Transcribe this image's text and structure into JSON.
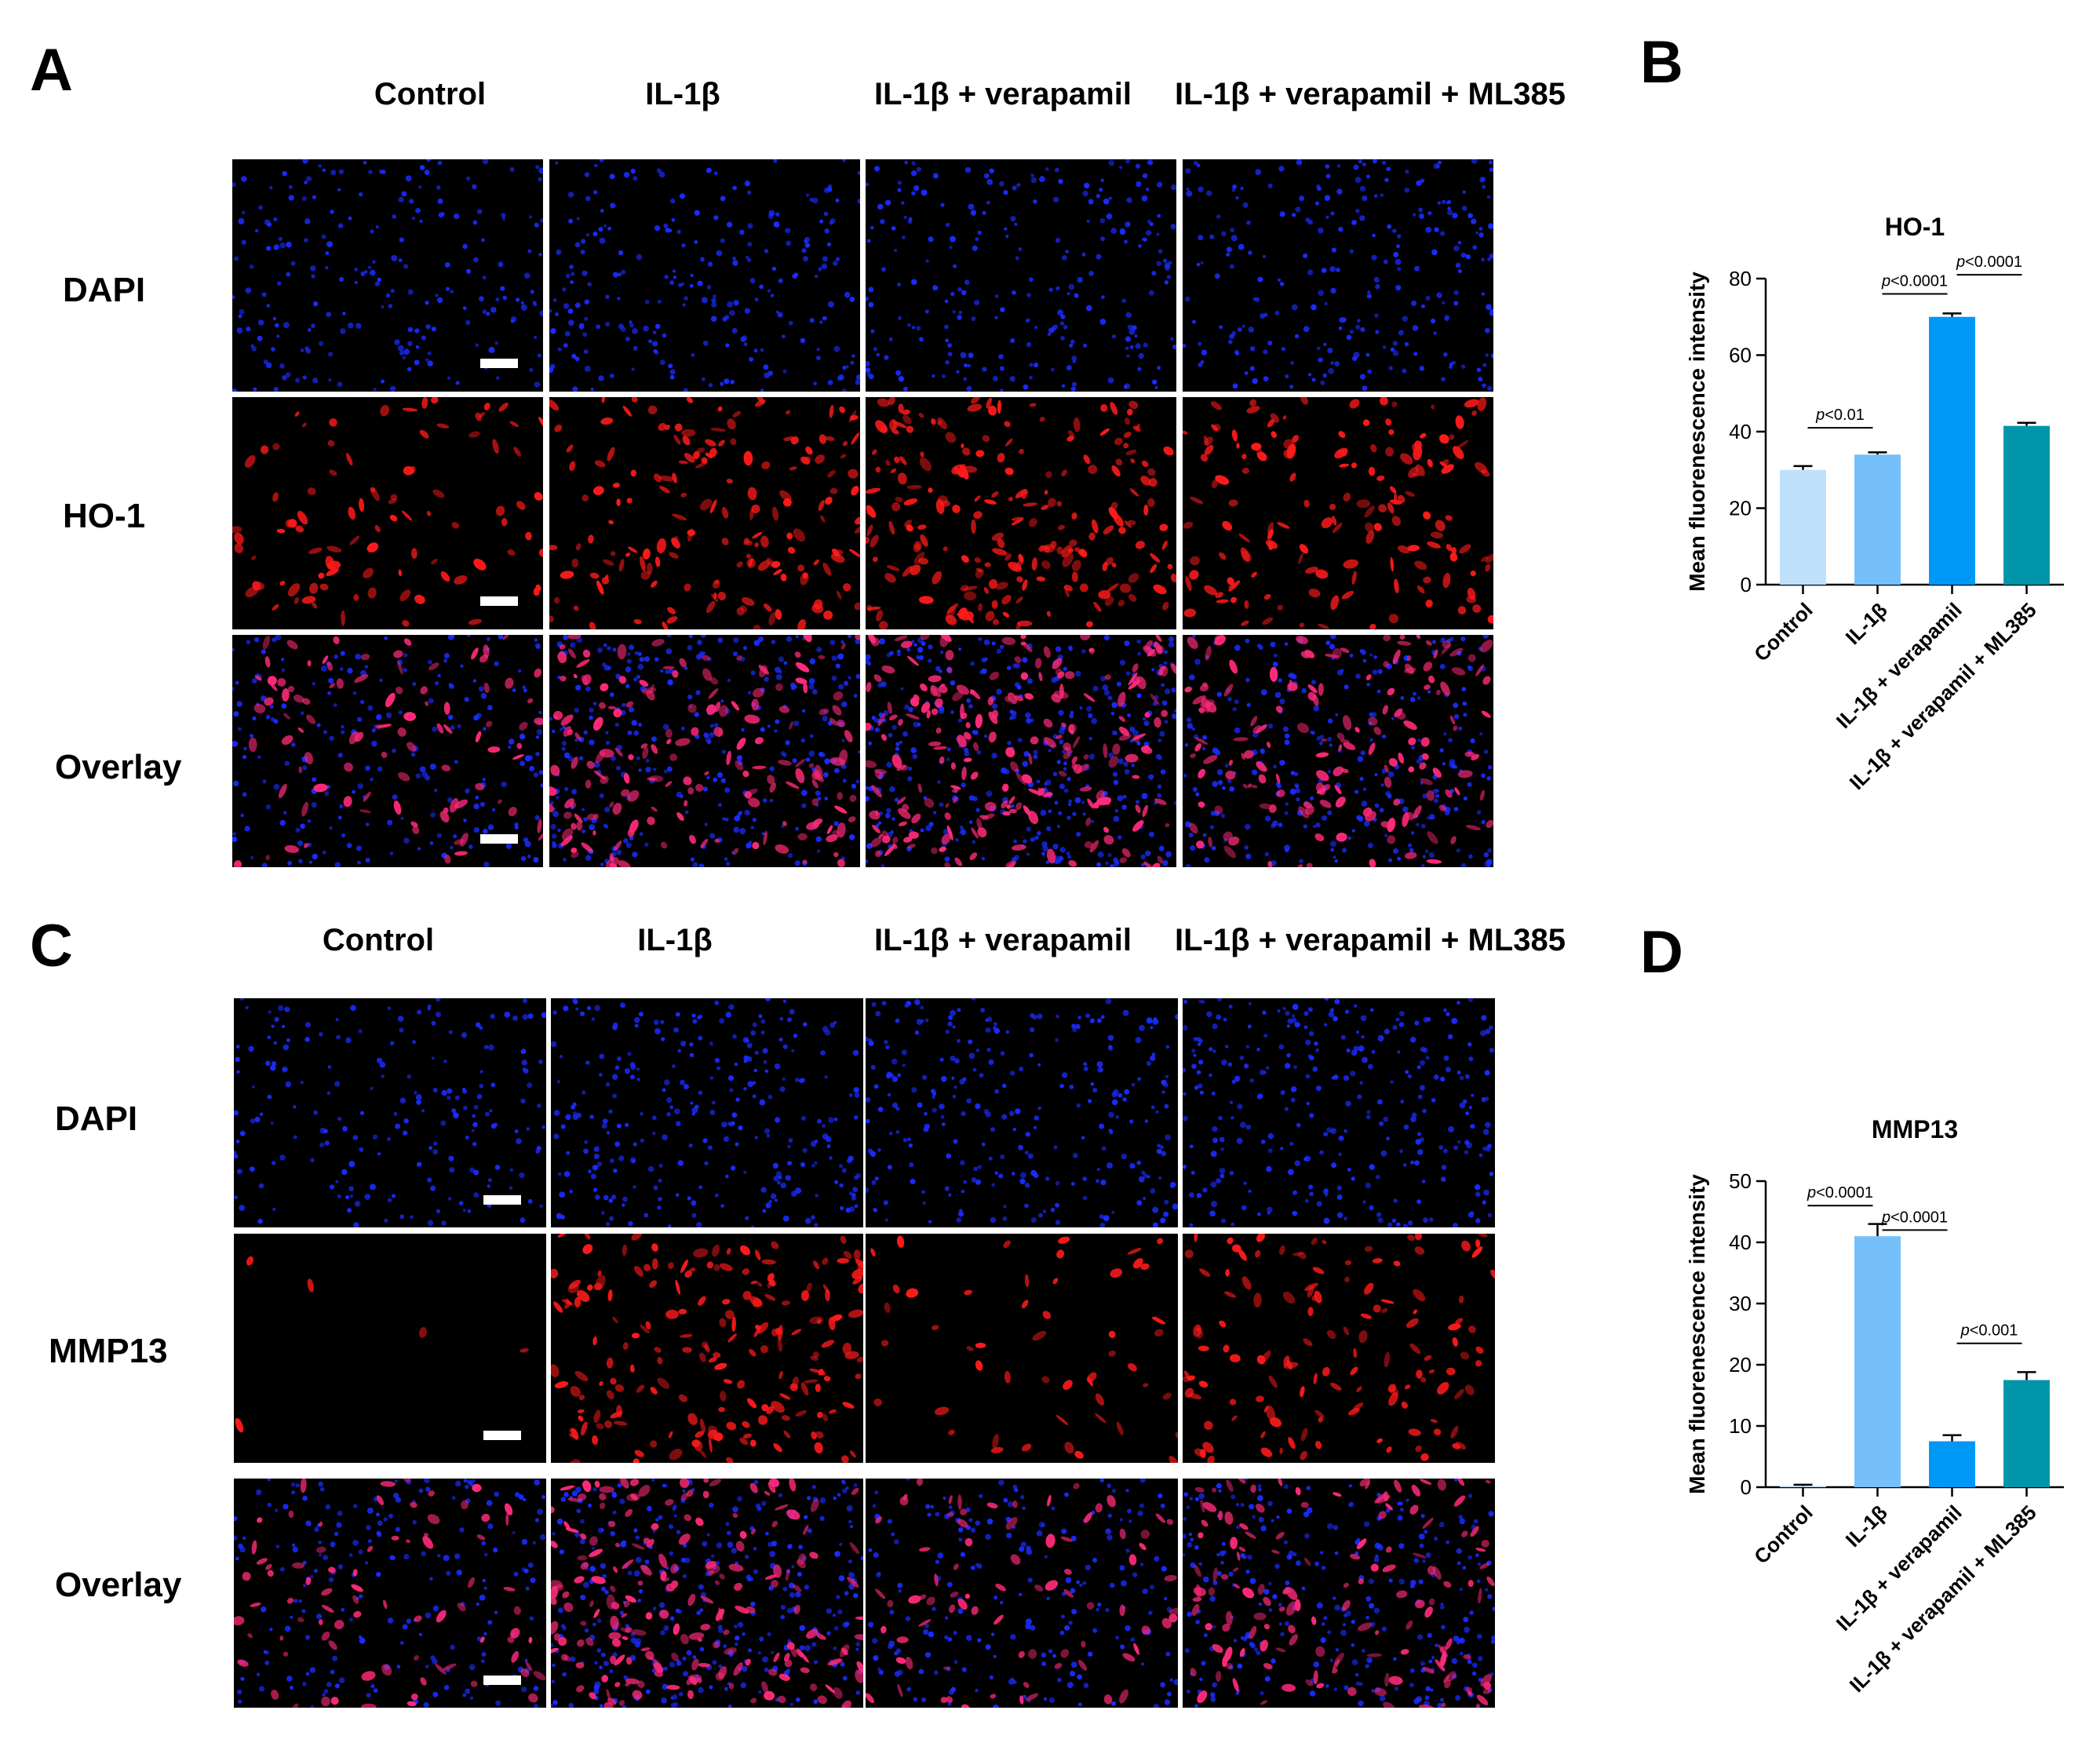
{
  "panels": {
    "A": {
      "letter": "A",
      "columns": [
        "Control",
        "IL-1β",
        "IL-1β + verapamil",
        "IL-1β + verapamil + ML385"
      ],
      "rows": [
        "DAPI",
        "HO-1",
        "Overlay"
      ]
    },
    "C": {
      "letter": "C",
      "columns": [
        "Control",
        "IL-1β",
        "IL-1β + verapamil",
        "IL-1β + verapamil + ML385"
      ],
      "rows": [
        "DAPI",
        "MMP13",
        "Overlay"
      ]
    },
    "B": {
      "letter": "B"
    },
    "D": {
      "letter": "D"
    }
  },
  "micrograph_intensity": {
    "A": [
      [
        0.35,
        0.45,
        0.45,
        0.5
      ],
      [
        0.35,
        0.65,
        0.85,
        0.6
      ],
      [
        0.35,
        0.65,
        0.85,
        0.6
      ]
    ],
    "C": [
      [
        0.3,
        0.6,
        0.55,
        0.65
      ],
      [
        0.02,
        0.75,
        0.2,
        0.5
      ],
      [
        0.3,
        0.75,
        0.3,
        0.55
      ]
    ]
  },
  "chart_data": [
    {
      "type": "bar",
      "title": "HO-1",
      "ylabel": "Mean fluorenescence intensity",
      "ylim": [
        0,
        80
      ],
      "yticks": [
        0,
        20,
        40,
        60,
        80
      ],
      "categories": [
        "Control",
        "IL-1β",
        "IL-1β + verapamil",
        "IL-1β + verapamil + ML385"
      ],
      "values": [
        30,
        34,
        70,
        41.5
      ],
      "errors": [
        1,
        0.6,
        0.9,
        0.8
      ],
      "colors": [
        "#bfe0fb",
        "#75c0fb",
        "#0098f7",
        "#0095a8"
      ],
      "comparisons": [
        {
          "from": 0,
          "to": 1,
          "label": "p<0.01",
          "level": 41
        },
        {
          "from": 1,
          "to": 2,
          "label": "p<0.0001",
          "level": 76
        },
        {
          "from": 2,
          "to": 3,
          "label": "p<0.0001",
          "level": 81
        }
      ]
    },
    {
      "type": "bar",
      "title": "MMP13",
      "ylabel": "Mean fluorenescence intensity",
      "ylim": [
        0,
        50
      ],
      "yticks": [
        0,
        10,
        20,
        30,
        40,
        50
      ],
      "categories": [
        "Control",
        "IL-1β",
        "IL-1β + verapamil",
        "IL-1β + verapamil + ML385"
      ],
      "values": [
        0.2,
        41,
        7.5,
        17.5
      ],
      "errors": [
        0.2,
        2,
        1,
        1.3
      ],
      "colors": [
        "#bfe0fb",
        "#75c0fb",
        "#0098f7",
        "#0095a8"
      ],
      "comparisons": [
        {
          "from": 0,
          "to": 1,
          "label": "p<0.0001",
          "level": 46
        },
        {
          "from": 1,
          "to": 2,
          "label": "p<0.0001",
          "level": 42
        },
        {
          "from": 2,
          "to": 3,
          "label": "p<0.001",
          "level": 23.5
        }
      ]
    }
  ]
}
